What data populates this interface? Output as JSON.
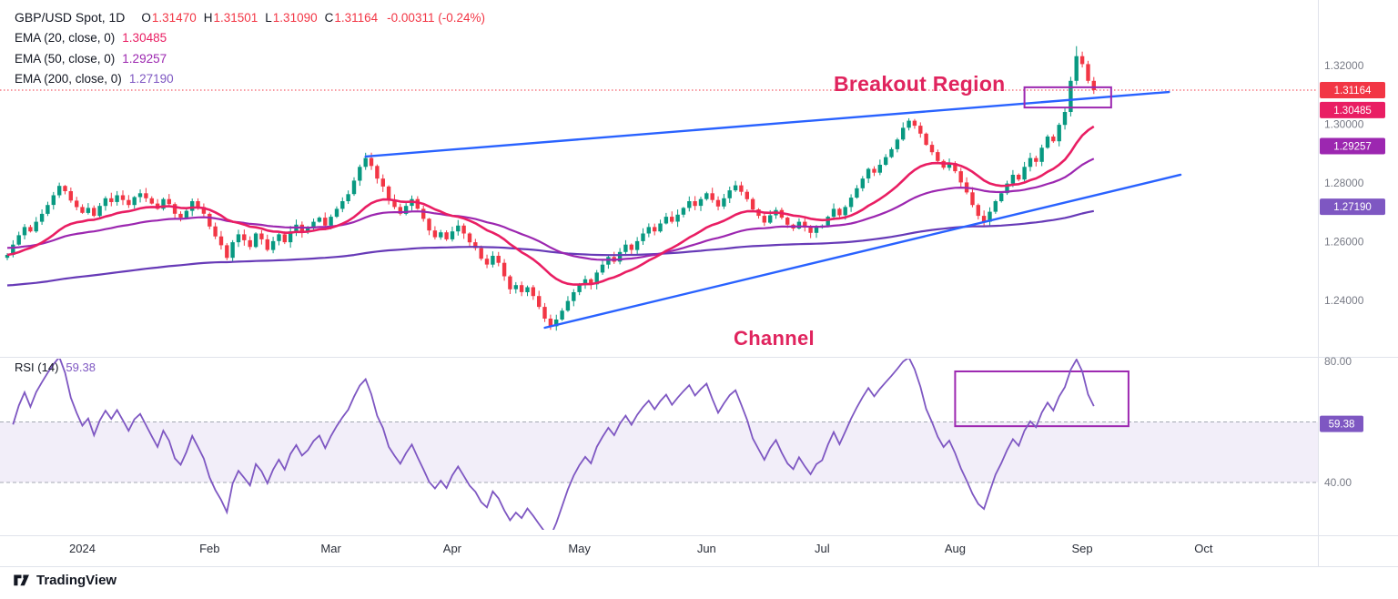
{
  "header": {
    "title": "GBP/USD Spot, 1D",
    "ohlc": {
      "o_label": "O",
      "o": "1.31470",
      "h_label": "H",
      "h": "1.31501",
      "l_label": "L",
      "l": "1.31090",
      "c_label": "C",
      "c": "1.31164",
      "change": "-0.00311 (-0.24%)"
    },
    "indicators": [
      {
        "label": "EMA (20, close, 0)",
        "value": "1.30485",
        "color": "#e91e63"
      },
      {
        "label": "EMA (50, close, 0)",
        "value": "1.29257",
        "color": "#9c27b0"
      },
      {
        "label": "EMA (200, close, 0)",
        "value": "1.27190",
        "color": "#673ab7"
      }
    ]
  },
  "annotations": {
    "breakout": "Breakout Region",
    "channel": "Channel",
    "color": "#e0245e"
  },
  "rsi_legend": {
    "label": "RSI (14)",
    "value": "59.38"
  },
  "price_axis": {
    "labels": [
      {
        "text": "1.32000",
        "value": 1.32
      },
      {
        "text": "1.30000",
        "value": 1.3
      },
      {
        "text": "1.28000",
        "value": 1.28
      },
      {
        "text": "1.26000",
        "value": 1.26
      },
      {
        "text": "1.24000",
        "value": 1.24
      }
    ],
    "badges": [
      {
        "text": "1.31164",
        "value": 1.31164,
        "color": "#f23645",
        "panel": "price"
      },
      {
        "text": "1.30485",
        "value": 1.30485,
        "color": "#e91e63",
        "panel": "price"
      },
      {
        "text": "1.29257",
        "value": 1.29257,
        "color": "#9c27b0",
        "panel": "price"
      },
      {
        "text": "1.27190",
        "value": 1.2719,
        "color": "#7e57c2",
        "panel": "price"
      },
      {
        "text": "59.38",
        "value": 59.38,
        "color": "#7e57c2",
        "panel": "rsi"
      }
    ]
  },
  "rsi_axis": {
    "labels": [
      {
        "text": "80.00",
        "value": 80
      },
      {
        "text": "40.00",
        "value": 40
      }
    ]
  },
  "footer": {
    "logo_text": "TradingView"
  },
  "chart_data": {
    "type": "candlestick",
    "symbol": "GBP/USD Spot",
    "interval": "1D",
    "title": "GBP/USD daily with EMA 20/50/200, rising channel, breakout region and RSI(14)",
    "ylim": [
      1.2214,
      1.3423
    ],
    "last": {
      "open": 1.3147,
      "high": 1.31501,
      "low": 1.3109,
      "close": 1.31164,
      "change": -0.00311,
      "change_pct": -0.24
    },
    "closes": [
      1.2555,
      1.259,
      1.2622,
      1.265,
      1.2635,
      1.2668,
      1.2695,
      1.2725,
      1.2758,
      1.279,
      1.2772,
      1.274,
      1.2718,
      1.2698,
      1.2715,
      1.2688,
      1.2722,
      1.2748,
      1.2735,
      1.2758,
      1.2742,
      1.2725,
      1.2752,
      1.2765,
      1.2748,
      1.273,
      1.2712,
      1.2745,
      1.2728,
      1.2695,
      1.2682,
      1.2705,
      1.2738,
      1.2718,
      1.2695,
      1.2652,
      1.2618,
      1.2588,
      1.2545,
      1.2598,
      1.2625,
      1.2605,
      1.2582,
      1.2628,
      1.2608,
      1.2572,
      1.2602,
      1.2625,
      1.2598,
      1.2635,
      1.2658,
      1.2632,
      1.2645,
      1.2668,
      1.2682,
      1.2655,
      1.2685,
      1.2712,
      1.2738,
      1.2762,
      1.2808,
      1.2855,
      1.2885,
      1.2858,
      1.2815,
      1.2788,
      1.2742,
      1.2718,
      1.2695,
      1.2722,
      1.2745,
      1.2712,
      1.2678,
      1.2638,
      1.2615,
      1.2632,
      1.2608,
      1.2635,
      1.2655,
      1.2628,
      1.2598,
      1.2578,
      1.2542,
      1.2522,
      1.2552,
      1.2528,
      1.2482,
      1.2438,
      1.2452,
      1.2428,
      1.2445,
      1.2415,
      1.2378,
      1.2338,
      1.2312,
      1.2335,
      1.2365,
      1.2398,
      1.2428,
      1.2452,
      1.2472,
      1.2455,
      1.2495,
      1.2522,
      1.2548,
      1.2532,
      1.2565,
      1.259,
      1.2572,
      1.2602,
      1.2628,
      1.265,
      1.2635,
      1.2662,
      1.2685,
      1.2668,
      1.2692,
      1.2715,
      1.2738,
      1.2722,
      1.2745,
      1.2765,
      1.2742,
      1.272,
      1.2748,
      1.2775,
      1.2792,
      1.277,
      1.2745,
      1.271,
      1.2688,
      1.2665,
      1.269,
      1.2708,
      1.2682,
      1.2658,
      1.2645,
      1.2668,
      1.2648,
      1.263,
      1.2648,
      1.2655,
      1.2685,
      1.2712,
      1.269,
      1.2718,
      1.275,
      1.2782,
      1.2815,
      1.2848,
      1.2835,
      1.2862,
      1.2888,
      1.2915,
      1.2948,
      1.2988,
      1.3012,
      1.2995,
      1.2968,
      1.293,
      1.2905,
      1.2875,
      1.2852,
      1.2868,
      1.284,
      1.2802,
      1.2768,
      1.2725,
      1.2688,
      1.2668,
      1.2702,
      1.2738,
      1.2765,
      1.2798,
      1.2828,
      1.2812,
      1.2855,
      1.2885,
      1.2872,
      1.292,
      1.2958,
      1.2942,
      1.2998,
      1.3042,
      1.3148,
      1.3232,
      1.3205,
      1.3148,
      1.31164
    ],
    "extremes": {
      "low_index": 94,
      "low_price": 1.23,
      "high_index": 185,
      "high_price": 1.3266
    },
    "month_ticks": [
      {
        "label": "2024",
        "index": 13
      },
      {
        "label": "Feb",
        "index": 35
      },
      {
        "label": "Mar",
        "index": 56
      },
      {
        "label": "Apr",
        "index": 77
      },
      {
        "label": "May",
        "index": 99
      },
      {
        "label": "Jun",
        "index": 121
      },
      {
        "label": "Jul",
        "index": 141
      },
      {
        "label": "Aug",
        "index": 164
      },
      {
        "label": "Sep",
        "index": 186
      },
      {
        "label": "Oct",
        "index": 207
      }
    ],
    "emas": [
      {
        "period": 20,
        "color": "#e91e63",
        "seed": null,
        "last_value": 1.30485
      },
      {
        "period": 50,
        "color": "#9c27b0",
        "seed": 1.258,
        "last_value": 1.29257
      },
      {
        "period": 200,
        "color": "#673ab7",
        "seed": 1.245,
        "last_value": 1.2719
      }
    ],
    "channel": {
      "upper": {
        "i1": 62,
        "p1": 1.289,
        "i2": 201,
        "p2": 1.311
      },
      "lower": {
        "i1": 93,
        "p1": 1.2307,
        "i2": 203,
        "p2": 1.2828
      }
    },
    "boxes": {
      "price": {
        "i1": 176,
        "i2": 191,
        "p1": 1.3057,
        "p2": 1.3126
      },
      "rsi": {
        "i1": 164,
        "i2": 194,
        "v1": 58.6,
        "v2": 76.7
      }
    },
    "rsi": {
      "period": 14,
      "current": 59.38,
      "band_upper": 60,
      "band_lower": 40
    },
    "colors": {
      "up": "#089981",
      "down": "#f23645",
      "channel": "#2962ff",
      "box": "#9c27b0",
      "rsi_line": "#7e57c2"
    }
  }
}
